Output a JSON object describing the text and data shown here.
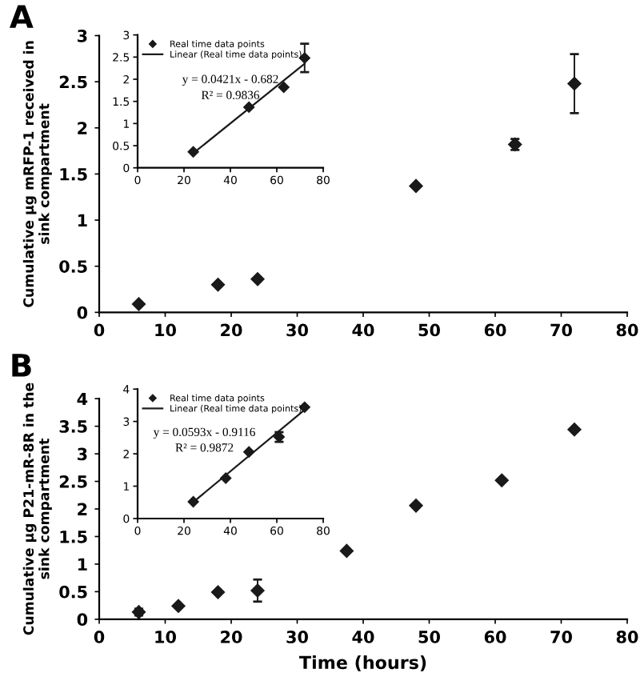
{
  "chart_data": [
    {
      "type": "scatter",
      "title": "A",
      "ylabel": "Cumulative µg mRFP-1 received in\nsink compartment",
      "marker": "diamond",
      "grid": false,
      "legend": false,
      "xlim": [
        0,
        80
      ],
      "xticks": [
        0,
        10,
        20,
        30,
        40,
        50,
        60,
        70,
        80
      ],
      "ylim": [
        0,
        3
      ],
      "yticks": [
        0,
        0.5,
        1,
        1.5,
        2,
        2.5,
        3
      ],
      "series": [
        {
          "color": "#1a1a1a",
          "x": [
            6,
            18,
            24,
            48,
            63,
            72
          ],
          "values": [
            0.09,
            0.3,
            0.36,
            1.37,
            1.82,
            2.48
          ],
          "errors": [
            null,
            null,
            null,
            null,
            0.06,
            0.32
          ]
        }
      ]
    },
    {
      "type": "scatter",
      "grid": false,
      "legend": "top left",
      "xlim": [
        0,
        80
      ],
      "xticks": [
        0,
        20,
        40,
        60,
        80
      ],
      "ylim": [
        0,
        3
      ],
      "yticks": [
        0,
        0.5,
        1,
        1.5,
        2,
        2.5,
        3
      ],
      "annotations": [
        "y = 0.0421x - 0.682",
        "R² = 0.9836"
      ],
      "series": [
        {
          "name": "Real time data points",
          "marker": "diamond",
          "color": "#1a1a1a",
          "x": [
            24,
            48,
            63,
            72
          ],
          "values": [
            0.36,
            1.37,
            1.82,
            2.48
          ],
          "errors": [
            null,
            null,
            null,
            0.32
          ]
        },
        {
          "type": "line",
          "name": "Linear (Real time data points)",
          "color": "#1a1a1a",
          "x": [
            24,
            72
          ],
          "values": [
            0.33,
            2.35
          ]
        }
      ]
    },
    {
      "type": "scatter",
      "title": "B",
      "ylabel": "Cumulative µg P21-mR-8R in the\nsink compartment",
      "xlabel": "Time (hours)",
      "marker": "diamond",
      "grid": false,
      "legend": false,
      "xlim": [
        0,
        80
      ],
      "xticks": [
        0,
        10,
        20,
        30,
        40,
        50,
        60,
        70,
        80
      ],
      "ylim": [
        0,
        4
      ],
      "yticks": [
        0,
        0.5,
        1,
        1.5,
        2,
        2.5,
        3,
        3.5,
        4
      ],
      "series": [
        {
          "color": "#1a1a1a",
          "x": [
            6,
            12,
            18,
            24,
            37.5,
            48,
            61,
            72
          ],
          "values": [
            0.13,
            0.24,
            0.49,
            0.52,
            1.24,
            2.06,
            2.52,
            3.44
          ],
          "errors": [
            0.06,
            null,
            null,
            0.2,
            null,
            null,
            null,
            null
          ]
        }
      ]
    },
    {
      "type": "scatter",
      "grid": false,
      "legend": "top left",
      "xlim": [
        0,
        80
      ],
      "xticks": [
        0,
        20,
        40,
        60,
        80
      ],
      "ylim": [
        0,
        4
      ],
      "yticks": [
        0,
        1,
        2,
        3,
        4
      ],
      "annotations": [
        "y = 0.0593x - 0.9116",
        "R² = 0.9872"
      ],
      "series": [
        {
          "name": "Real time data points",
          "marker": "diamond",
          "color": "#1a1a1a",
          "x": [
            24,
            38,
            48,
            61,
            72
          ],
          "values": [
            0.52,
            1.25,
            2.06,
            2.52,
            3.44
          ],
          "errors": [
            null,
            null,
            null,
            0.15,
            null
          ]
        },
        {
          "type": "line",
          "name": "Linear (Real time data points)",
          "color": "#1a1a1a",
          "x": [
            24,
            72
          ],
          "values": [
            0.51,
            3.36
          ]
        }
      ]
    }
  ]
}
